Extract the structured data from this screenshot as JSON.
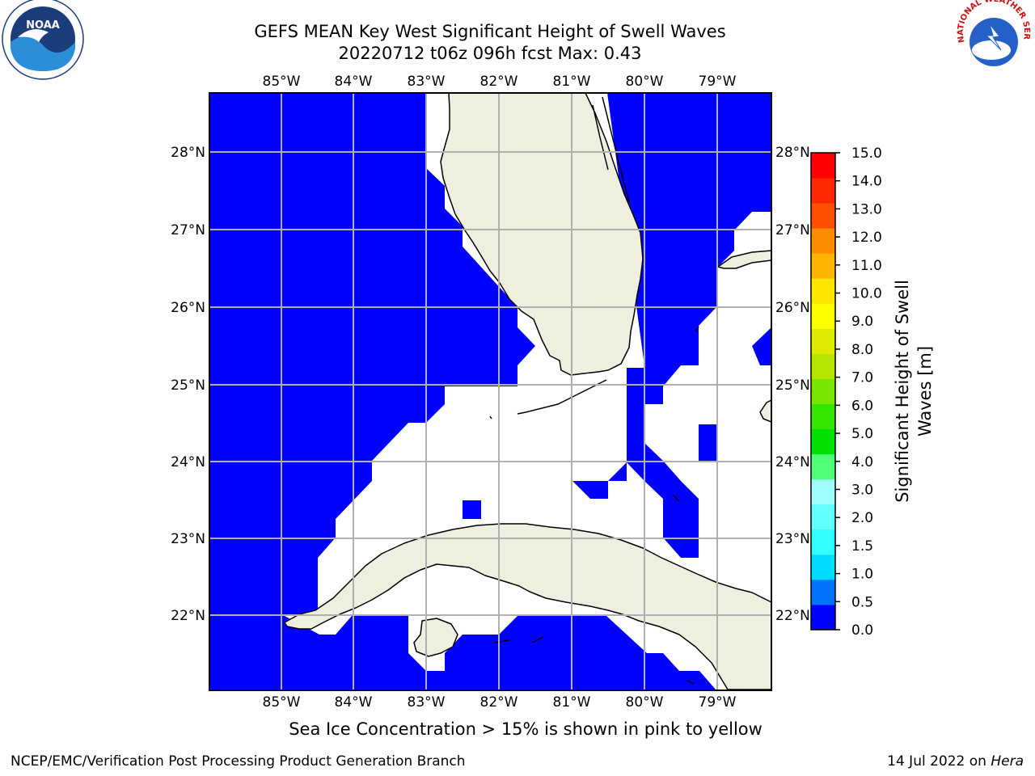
{
  "title": {
    "line1": "GEFS MEAN Key West Significant Height of Swell Waves",
    "line2": "20220712 t06z 096h fcst   Max: 0.43"
  },
  "logos": {
    "left": {
      "icon": "noaa-logo-icon",
      "text": "NOAA"
    },
    "right": {
      "icon": "nws-logo-icon",
      "text": "NATIONAL WEATHER SERVICE"
    }
  },
  "map": {
    "lon_labels": [
      "85°W",
      "84°W",
      "83°W",
      "82°W",
      "81°W",
      "80°W",
      "79°W"
    ],
    "lat_labels": [
      "28°N",
      "27°N",
      "26°N",
      "25°N",
      "24°N",
      "23°N",
      "22°N"
    ],
    "colors": {
      "swell": "#0000ff",
      "land": "#efefdf",
      "grid": "#b0b0b0"
    }
  },
  "colorbar": {
    "label_line1": "Significant Height of Swell",
    "label_line2": "Waves [m]",
    "ticks": [
      "15.0",
      "14.0",
      "13.0",
      "12.0",
      "11.0",
      "10.0",
      "9.0",
      "8.0",
      "7.0",
      "6.0",
      "5.0",
      "4.0",
      "3.0",
      "2.0",
      "1.5",
      "1.0",
      "0.5",
      "0.0"
    ],
    "colors": [
      "#0000ff",
      "#0073ff",
      "#00dcff",
      "#32ffff",
      "#64ffff",
      "#a0ffff",
      "#50ff78",
      "#00e000",
      "#32e600",
      "#78e600",
      "#b4e600",
      "#dceb00",
      "#ffff00",
      "#ffe600",
      "#ffb400",
      "#ff8c00",
      "#ff5000",
      "#ff2800",
      "#ff0000"
    ]
  },
  "caption": "Sea Ice Concentration > 15% is shown in pink to yellow",
  "footer": {
    "left": "NCEP/EMC/Verification Post Processing Product Generation Branch",
    "right_date": "14 Jul 2022 on ",
    "right_host": "Hera"
  }
}
